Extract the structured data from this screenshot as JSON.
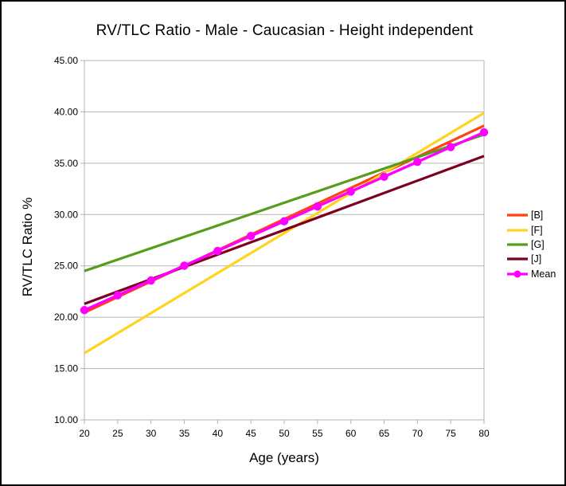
{
  "window": {
    "background": "#ffffff",
    "border_color": "#000000"
  },
  "chart_data": {
    "type": "line",
    "title": "RV/TLC Ratio - Male - Caucasian - Height independent",
    "xlabel": "Age (years)",
    "ylabel": "RV/TLC Ratio %",
    "xlim": [
      20,
      80
    ],
    "ylim": [
      10,
      45
    ],
    "xticks": [
      20,
      25,
      30,
      35,
      40,
      45,
      50,
      55,
      60,
      65,
      70,
      75,
      80
    ],
    "xtick_labels": [
      "20",
      "25",
      "30",
      "35",
      "40",
      "45",
      "50",
      "55",
      "60",
      "65",
      "70",
      "75",
      "80"
    ],
    "yticks": [
      45,
      40,
      35,
      30,
      25,
      20,
      15,
      10
    ],
    "ytick_labels": [
      "45.00",
      "40.00",
      "35.00",
      "30.00",
      "25.00",
      "20.00",
      "15.00",
      "10.00"
    ],
    "grid": "horizontal",
    "grid_color": "#b3b3b3",
    "axis_color": "#b3b3b3",
    "text_color": "#000000",
    "legend_position": "right",
    "series": [
      {
        "name": "[B]",
        "color": "#ff420e",
        "marker": "none",
        "x": [
          20,
          80
        ],
        "values": [
          20.45,
          38.65
        ]
      },
      {
        "name": "[F]",
        "color": "#ffd320",
        "marker": "none",
        "x": [
          20,
          80
        ],
        "values": [
          16.5,
          39.9
        ]
      },
      {
        "name": "[G]",
        "color": "#579d1c",
        "marker": "none",
        "x": [
          20,
          80
        ],
        "values": [
          24.5,
          37.8
        ]
      },
      {
        "name": "[J]",
        "color": "#7e0021",
        "marker": "none",
        "x": [
          20,
          80
        ],
        "values": [
          21.3,
          35.7
        ]
      },
      {
        "name": "Mean",
        "color": "#ff00ff",
        "marker": "circle",
        "x": [
          20,
          25,
          30,
          35,
          40,
          45,
          50,
          55,
          60,
          65,
          70,
          75,
          80
        ],
        "values": [
          20.69,
          22.13,
          23.58,
          25.02,
          26.46,
          27.91,
          29.35,
          30.79,
          32.24,
          33.68,
          35.13,
          36.57,
          38.01
        ]
      }
    ]
  }
}
